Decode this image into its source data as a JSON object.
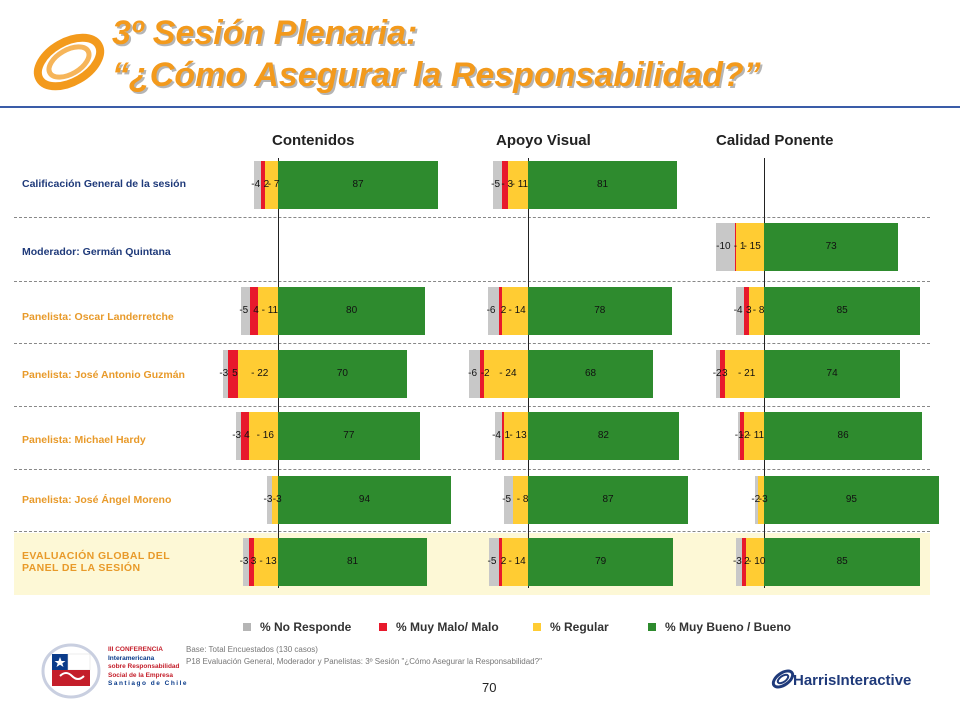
{
  "header": {
    "title_line1": "3º Sesión Plenaria:",
    "title_line2": "“¿Cómo Asegurar la Responsabilidad?”"
  },
  "colors": {
    "no_responde": "#c8c8c8",
    "muy_malo": "#e8192c",
    "regular": "#ffcc33",
    "bueno": "#2e8b2e",
    "title": "#f39a1c",
    "row_label": "#e89a2a",
    "row_label_top": "#1f3a7a"
  },
  "chart_data": {
    "type": "bar",
    "orientation": "horizontal-diverging",
    "panels": [
      "Contenidos",
      "Apoyo Visual",
      "Calidad Ponente"
    ],
    "categories": [
      "Calificación General de la sesión",
      "Moderador: Germán Quintana",
      "Panelista: Oscar Landerretche",
      "Panelista: José Antonio Guzmán",
      "Panelista: Michael Hardy",
      "Panelista: José Ángel Moreno",
      "EVALUACIÓN GLOBAL DEL PANEL DE LA SESIÓN"
    ],
    "series_names": [
      "% No Responde",
      "% Muy Malo/ Malo",
      "% Regular",
      "% Muy Bueno / Bueno"
    ],
    "values": [
      [
        {
          "nr": 4,
          "mm": 2,
          "reg": 7,
          "bueno": 87
        },
        {
          "nr": 5,
          "mm": 3,
          "reg": 11,
          "bueno": 81
        },
        null
      ],
      [
        null,
        null,
        {
          "nr": 10,
          "mm": 1,
          "reg": 15,
          "bueno": 73
        }
      ],
      [
        {
          "nr": 5,
          "mm": 4,
          "reg": 11,
          "bueno": 80
        },
        {
          "nr": 6,
          "mm": 2,
          "reg": 14,
          "bueno": 78
        },
        {
          "nr": 4,
          "mm": 3,
          "reg": 8,
          "bueno": 85
        }
      ],
      [
        {
          "nr": 3,
          "mm": 5,
          "reg": 22,
          "bueno": 70
        },
        {
          "nr": 6,
          "mm": 2,
          "reg": 24,
          "bueno": 68
        },
        {
          "nr": 2,
          "mm": 3,
          "reg": 21,
          "bueno": 74
        }
      ],
      [
        {
          "nr": 3,
          "mm": 4,
          "reg": 16,
          "bueno": 77
        },
        {
          "nr": 4,
          "mm": 1,
          "reg": 13,
          "bueno": 82
        },
        {
          "nr": 1,
          "mm": 2,
          "reg": 11,
          "bueno": 86
        }
      ],
      [
        {
          "nr": 3,
          "mm": 0,
          "reg": 3,
          "bueno": 94
        },
        {
          "nr": 5,
          "mm": 0,
          "reg": 8,
          "bueno": 87
        },
        {
          "nr": 2,
          "mm": 0,
          "reg": 3,
          "bueno": 95
        }
      ],
      [
        {
          "nr": 3,
          "mm": 3,
          "reg": 13,
          "bueno": 81
        },
        {
          "nr": 5,
          "mm": 2,
          "reg": 14,
          "bueno": 79
        },
        {
          "nr": 3,
          "mm": 2,
          "reg": 10,
          "bueno": 85
        }
      ]
    ],
    "labels": [
      [
        [
          "-4",
          "2",
          "- 7",
          "87"
        ],
        [
          "-5",
          "- 3",
          "- 11",
          "81"
        ],
        null
      ],
      [
        null,
        null,
        [
          "-10",
          "- 1",
          "- 15",
          "73"
        ]
      ],
      [
        [
          "-5",
          "4",
          "- 11",
          "80"
        ],
        [
          "-6",
          "2",
          "- 14",
          "78"
        ],
        [
          "-4",
          "3",
          "- 8",
          "85"
        ]
      ],
      [
        [
          "-3",
          "5",
          "- 22",
          "70"
        ],
        [
          "-6",
          "-2",
          "- 24",
          "68"
        ],
        [
          "-2",
          "3",
          "- 21",
          "74"
        ]
      ],
      [
        [
          "-3",
          "4",
          "- 16",
          "77"
        ],
        [
          "-4",
          "1",
          "- 13",
          "82"
        ],
        [
          "-1",
          "-2",
          "- 11",
          "86"
        ]
      ],
      [
        [
          "-3",
          "",
          "-3",
          "94"
        ],
        [
          "-5",
          "",
          "- 8",
          "87"
        ],
        [
          "-2",
          "",
          "-3",
          "95"
        ]
      ],
      [
        [
          "-3",
          "3",
          "- 13",
          "81"
        ],
        [
          "-5",
          "2",
          "- 14",
          "79"
        ],
        [
          "-3",
          "2",
          "- 10",
          "85"
        ]
      ]
    ]
  },
  "legend": {
    "items": [
      "% No Responde",
      "% Muy Malo/ Malo",
      "% Regular",
      "% Muy Bueno / Bueno"
    ]
  },
  "footer": {
    "base": "Base: Total Encuestados (130 casos)",
    "question": "P18 Evaluación General, Moderador y Panelistas: 3º Sesión \"¿Cómo Asegurar la Responsabilidad?\"",
    "page_number": "70",
    "conference": [
      "III CONFERENCIA",
      "Interamericana",
      "sobre Responsabilidad",
      "Social de la Empresa",
      "Santiago de Chile"
    ],
    "brand": "HarrisInteractive"
  }
}
